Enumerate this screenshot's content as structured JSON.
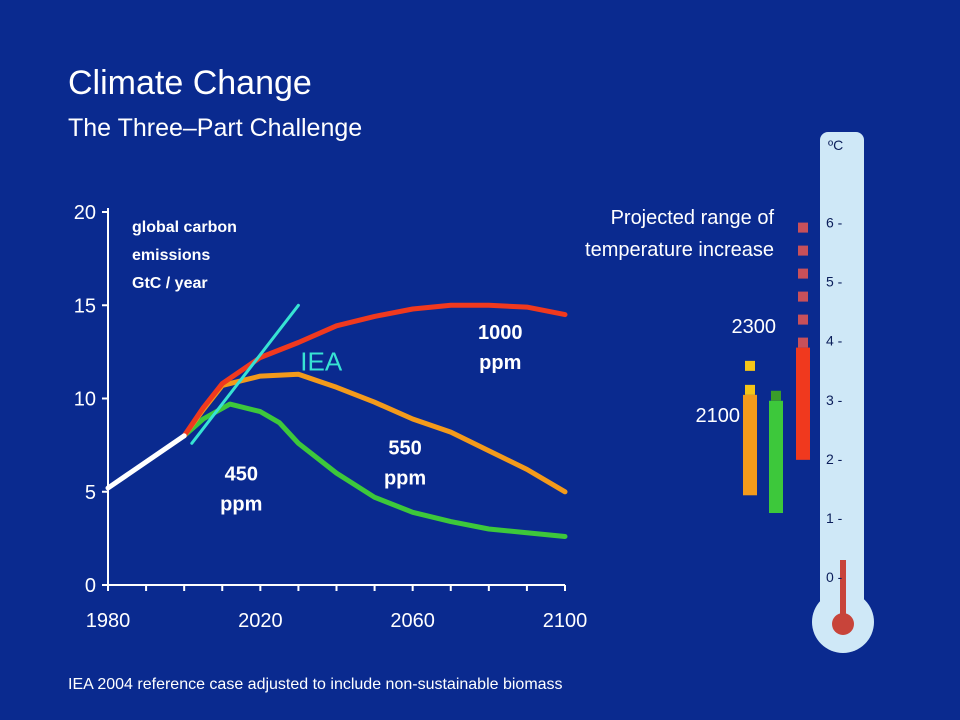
{
  "slide": {
    "title": "Climate Change",
    "subtitle": "The Three–Part Challenge",
    "footnote": "IEA 2004 reference case adjusted to include non-sustainable biomass"
  },
  "chart_data": [
    {
      "type": "line",
      "ylabel": [
        "global carbon",
        "emissions",
        "GtC / year"
      ],
      "xlim": [
        1980,
        2100
      ],
      "ylim": [
        0,
        20
      ],
      "x_ticks": [
        1980,
        2020,
        2060,
        2100
      ],
      "y_ticks": [
        0,
        5,
        10,
        15,
        20
      ],
      "grid": false,
      "series": [
        {
          "name": "history",
          "label": "",
          "color": "#ffffff",
          "points": [
            [
              1980,
              5.2
            ],
            [
              2000,
              8.0
            ]
          ]
        },
        {
          "name": "IEA",
          "label": "IEA",
          "color": "#37e3d3",
          "points": [
            [
              2002,
              7.6
            ],
            [
              2030,
              15.0
            ]
          ]
        },
        {
          "name": "1000 ppm",
          "label": "1000 ppm",
          "color": "#f0391e",
          "points": [
            [
              2000,
              8.0
            ],
            [
              2005,
              9.5
            ],
            [
              2010,
              10.8
            ],
            [
              2020,
              12.2
            ],
            [
              2030,
              13.0
            ],
            [
              2040,
              13.9
            ],
            [
              2050,
              14.4
            ],
            [
              2060,
              14.8
            ],
            [
              2070,
              15.0
            ],
            [
              2080,
              15.0
            ],
            [
              2090,
              14.9
            ],
            [
              2100,
              14.5
            ]
          ]
        },
        {
          "name": "550 ppm",
          "label": "550 ppm",
          "color": "#f39a1b",
          "points": [
            [
              2000,
              8.0
            ],
            [
              2005,
              9.4
            ],
            [
              2010,
              10.7
            ],
            [
              2020,
              11.2
            ],
            [
              2030,
              11.3
            ],
            [
              2040,
              10.6
            ],
            [
              2050,
              9.8
            ],
            [
              2060,
              8.9
            ],
            [
              2070,
              8.2
            ],
            [
              2080,
              7.2
            ],
            [
              2090,
              6.2
            ],
            [
              2100,
              5.0
            ]
          ]
        },
        {
          "name": "450 ppm",
          "label": "450 ppm",
          "color": "#3dc83b",
          "points": [
            [
              2000,
              8.0
            ],
            [
              2005,
              8.9
            ],
            [
              2012,
              9.7
            ],
            [
              2020,
              9.3
            ],
            [
              2025,
              8.7
            ],
            [
              2030,
              7.6
            ],
            [
              2040,
              6.0
            ],
            [
              2050,
              4.7
            ],
            [
              2060,
              3.9
            ],
            [
              2070,
              3.4
            ],
            [
              2080,
              3.0
            ],
            [
              2090,
              2.8
            ],
            [
              2100,
              2.6
            ]
          ]
        }
      ]
    },
    {
      "type": "bar",
      "title": [
        "Projected range of",
        "temperature increase"
      ],
      "unit": "ºC",
      "y_ticks": [
        "0 -",
        "1 -",
        "2 -",
        "3 -",
        "4 -",
        "5 -",
        "6 -"
      ],
      "ylim": [
        0,
        6.5
      ],
      "year_labels": [
        "2300",
        "2100"
      ],
      "ranges": [
        {
          "name": "550 ppm (orange) 2100",
          "color": "#f39a1b",
          "low": 1.4,
          "high": 3.1,
          "dashed": false
        },
        {
          "name": "550 ppm (orange) 2300",
          "color": "#f5c518",
          "low": 3.1,
          "high": 4.0,
          "dashed": true
        },
        {
          "name": "450 ppm (green) 2100",
          "color": "#3dc83b",
          "low": 1.1,
          "high": 3.0,
          "dashed": false
        },
        {
          "name": "450 ppm (green) 2300",
          "color": "#3a9d2a",
          "low": 3.0,
          "high": 3.4,
          "dashed": true
        },
        {
          "name": "1000 ppm (red) 2100",
          "color": "#f0391e",
          "low": 2.0,
          "high": 3.9,
          "dashed": false
        },
        {
          "name": "1000 ppm (red) 2300",
          "color": "#c8505a",
          "low": 3.9,
          "high": 6.3,
          "dashed": true
        }
      ]
    }
  ]
}
